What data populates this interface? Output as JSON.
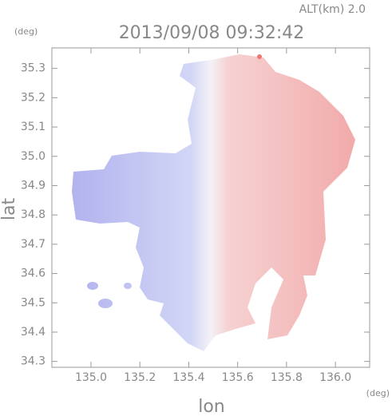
{
  "chart_data": {
    "type": "map",
    "title": "2013/09/08 09:32:42",
    "annotation": "ALT(km) 2.0",
    "y_unit": "(deg)",
    "x_unit": "(deg)",
    "x_label": "lon",
    "y_label": "lat",
    "xlim": [
      134.84,
      136.14
    ],
    "ylim": [
      34.28,
      35.37
    ],
    "xticks": [
      {
        "value": 135,
        "label": "135.0"
      },
      135.2,
      135.4,
      135.6,
      135.8,
      {
        "value": 136,
        "label": "136.0"
      }
    ],
    "yticks": [
      34.3,
      34.4,
      34.5,
      34.6,
      34.7,
      34.8,
      34.9,
      {
        "value": 35,
        "label": "35.0"
      },
      35.1,
      35.2,
      35.3
    ]
  }
}
